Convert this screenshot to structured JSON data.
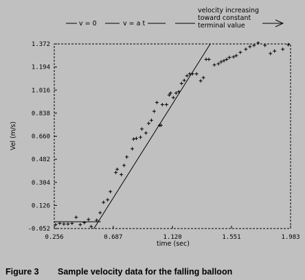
{
  "caption": {
    "figure_label": "Figure 3",
    "text": "Sample velocity data for the falling balloon"
  },
  "annotations": {
    "v_zero": "v = 0",
    "v_slope": "v = a t",
    "terminal_line1": "velocity increasing",
    "terminal_line2": "toward constant",
    "terminal_line3": "terminal value"
  },
  "chart_data": {
    "type": "scatter",
    "title": "",
    "xlabel": "time (sec)",
    "ylabel": "Vel (m/s)",
    "xlim": [
      0.256,
      1.983
    ],
    "ylim": [
      -0.052,
      1.372
    ],
    "x_ticks": [
      0.256,
      0.687,
      1.12,
      1.551,
      1.983
    ],
    "x_tick_labels": [
      "0.256",
      "0.687",
      "1.120",
      "1.551",
      "1.983"
    ],
    "y_ticks": [
      -0.052,
      0.126,
      0.304,
      0.482,
      0.66,
      0.838,
      1.016,
      1.194,
      1.372
    ],
    "y_tick_labels": [
      "-0.052",
      "0.126",
      "0.304",
      "0.482",
      "0.660",
      "0.838",
      "1.016",
      "1.194",
      "1.372"
    ],
    "frame": "dashed",
    "grid": false,
    "series": [
      {
        "marker": "+",
        "points": [
          [
            0.266,
            -0.022
          ],
          [
            0.296,
            -0.012
          ],
          [
            0.326,
            -0.017
          ],
          [
            0.356,
            -0.017
          ],
          [
            0.386,
            -0.012
          ],
          [
            0.416,
            0.035
          ],
          [
            0.446,
            -0.022
          ],
          [
            0.476,
            -0.007
          ],
          [
            0.506,
            0.018
          ],
          [
            0.526,
            -0.037
          ],
          [
            0.566,
            0.012
          ],
          [
            0.591,
            0.07
          ],
          [
            0.616,
            0.15
          ],
          [
            0.646,
            0.17
          ],
          [
            0.666,
            0.233
          ],
          [
            0.706,
            0.38
          ],
          [
            0.716,
            0.405
          ],
          [
            0.746,
            0.364
          ],
          [
            0.766,
            0.435
          ],
          [
            0.786,
            0.5
          ],
          [
            0.826,
            0.563
          ],
          [
            0.836,
            0.638
          ],
          [
            0.856,
            0.643
          ],
          [
            0.886,
            0.652
          ],
          [
            0.896,
            0.716
          ],
          [
            0.926,
            0.685
          ],
          [
            0.946,
            0.759
          ],
          [
            0.966,
            0.783
          ],
          [
            0.986,
            0.852
          ],
          [
            1.006,
            0.92
          ],
          [
            1.026,
            0.745
          ],
          [
            1.036,
            0.744
          ],
          [
            1.046,
            0.904
          ],
          [
            1.076,
            0.904
          ],
          [
            1.096,
            0.978
          ],
          [
            1.106,
            0.993
          ],
          [
            1.126,
            0.958
          ],
          [
            1.146,
            0.993
          ],
          [
            1.166,
            1.004
          ],
          [
            1.186,
            1.067
          ],
          [
            1.206,
            1.091
          ],
          [
            1.226,
            1.126
          ],
          [
            1.246,
            1.141
          ],
          [
            1.266,
            1.141
          ],
          [
            1.296,
            1.141
          ],
          [
            1.326,
            1.087
          ],
          [
            1.346,
            1.112
          ],
          [
            1.366,
            1.253
          ],
          [
            1.386,
            1.253
          ],
          [
            1.426,
            1.21
          ],
          [
            1.456,
            1.219
          ],
          [
            1.476,
            1.234
          ],
          [
            1.496,
            1.243
          ],
          [
            1.516,
            1.253
          ],
          [
            1.536,
            1.268
          ],
          [
            1.566,
            1.272
          ],
          [
            1.586,
            1.282
          ],
          [
            1.616,
            1.307
          ],
          [
            1.656,
            1.331
          ],
          [
            1.686,
            1.351
          ],
          [
            1.716,
            1.361
          ],
          [
            1.746,
            1.38
          ],
          [
            1.796,
            1.361
          ],
          [
            1.836,
            1.298
          ],
          [
            1.866,
            1.317
          ],
          [
            1.926,
            1.331
          ],
          [
            1.966,
            1.366
          ]
        ]
      }
    ],
    "fit_lines": [
      {
        "segment": "v = 0",
        "points": [
          [
            0.256,
            0.0
          ],
          [
            0.596,
            0.0
          ]
        ]
      },
      {
        "segment": "v = a t",
        "points": [
          [
            0.546,
            -0.052
          ],
          [
            1.396,
            1.372
          ]
        ]
      }
    ],
    "legend": "none"
  }
}
